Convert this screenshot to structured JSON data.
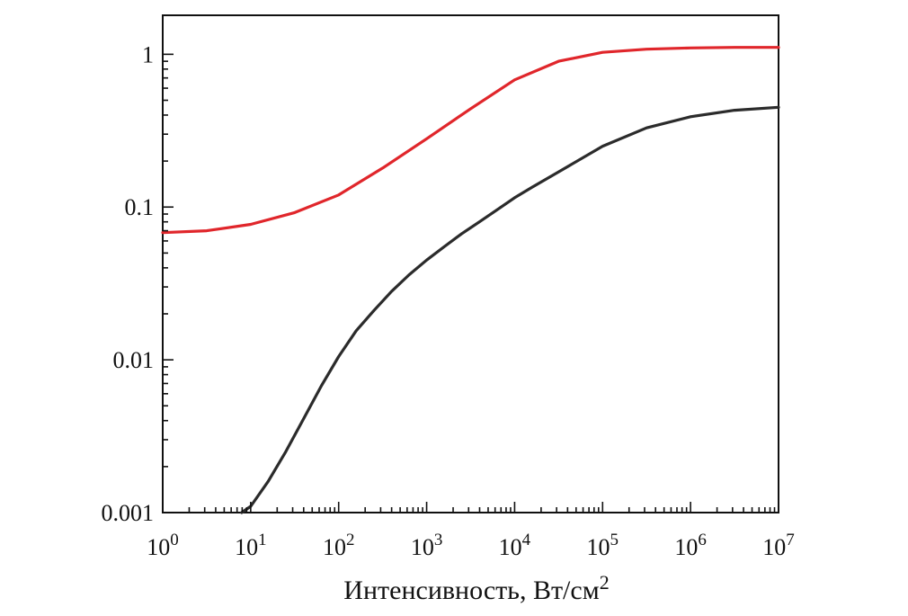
{
  "chart_data": {
    "type": "line",
    "xscale": "log",
    "yscale": "log",
    "xlim": [
      1,
      10000000
    ],
    "ylim": [
      0.001,
      1.8
    ],
    "xlabel": "Интенсивность, Вт/см",
    "xlabel_sup": "2",
    "ylabel": "",
    "title": "",
    "legend": "none",
    "grid": false,
    "x_ticks": [
      {
        "base": "10",
        "exp": "0",
        "value": 1
      },
      {
        "base": "10",
        "exp": "1",
        "value": 10
      },
      {
        "base": "10",
        "exp": "2",
        "value": 100
      },
      {
        "base": "10",
        "exp": "3",
        "value": 1000
      },
      {
        "base": "10",
        "exp": "4",
        "value": 10000
      },
      {
        "base": "10",
        "exp": "5",
        "value": 100000
      },
      {
        "base": "10",
        "exp": "6",
        "value": 1000000
      },
      {
        "base": "10",
        "exp": "7",
        "value": 10000000
      }
    ],
    "y_ticks": [
      {
        "label": "0.001",
        "value": 0.001
      },
      {
        "label": "0.01",
        "value": 0.01
      },
      {
        "label": "0.1",
        "value": 0.1
      },
      {
        "label": "1",
        "value": 1
      }
    ],
    "series": [
      {
        "color": "#e0262b",
        "x": [
          1,
          3.16,
          10,
          31.6,
          100,
          316,
          1000,
          3162,
          10000,
          31623,
          100000,
          316228,
          1000000,
          3162278,
          10000000
        ],
        "y": [
          0.068,
          0.07,
          0.077,
          0.092,
          0.12,
          0.18,
          0.28,
          0.44,
          0.68,
          0.9,
          1.03,
          1.08,
          1.1,
          1.11,
          1.11
        ]
      },
      {
        "color": "#2b2b2b",
        "x": [
          7.9,
          10,
          15.8,
          25,
          39.8,
          63.1,
          100,
          158,
          251,
          398,
          631,
          1000,
          1585,
          2512,
          3981,
          6310,
          10000,
          15849,
          31623,
          100000,
          316228,
          1000000,
          3162278,
          10000000
        ],
        "y": [
          0.001,
          0.0011,
          0.0016,
          0.0025,
          0.0041,
          0.0067,
          0.0105,
          0.0155,
          0.021,
          0.028,
          0.036,
          0.045,
          0.055,
          0.067,
          0.08,
          0.096,
          0.115,
          0.135,
          0.17,
          0.25,
          0.33,
          0.39,
          0.43,
          0.45
        ]
      }
    ]
  }
}
